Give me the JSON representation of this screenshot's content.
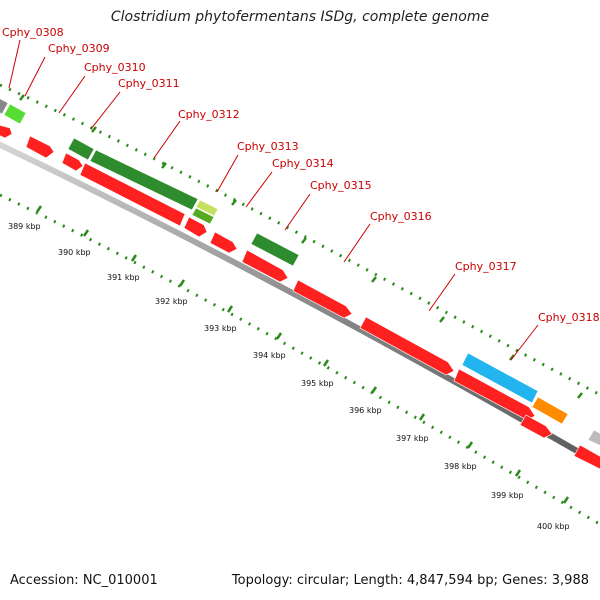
{
  "title": "Clostridium phytofermentans ISDg, complete genome",
  "accession": "Accession: NC_010001",
  "summary": "Topology: circular; Length: 4,847,594 bp; Genes: 3,988",
  "colors": {
    "label": "#cc0000",
    "tick": "#2a8a1a",
    "ring": "#888888",
    "red_gene": "#ff2020",
    "green_gene": "#2e8b2e",
    "light_green_gene": "#55dd33",
    "blue_gene": "#22b4ee",
    "orange_gene": "#ff8c00",
    "gray_gene": "#bbbbbb",
    "yellow_green_gene": "#c8e060"
  },
  "gene_labels": [
    "Cphy_0308",
    "Cphy_0309",
    "Cphy_0310",
    "Cphy_0311",
    "Cphy_0312",
    "Cphy_0313",
    "Cphy_0314",
    "Cphy_0315",
    "Cphy_0316",
    "Cphy_0317",
    "Cphy_0318"
  ],
  "scale_labels": [
    "389 kbp",
    "390 kbp",
    "391 kbp",
    "392 kbp",
    "393 kbp",
    "394 kbp",
    "395 kbp",
    "396 kbp",
    "397 kbp",
    "398 kbp",
    "399 kbp",
    "400 kbp"
  ]
}
